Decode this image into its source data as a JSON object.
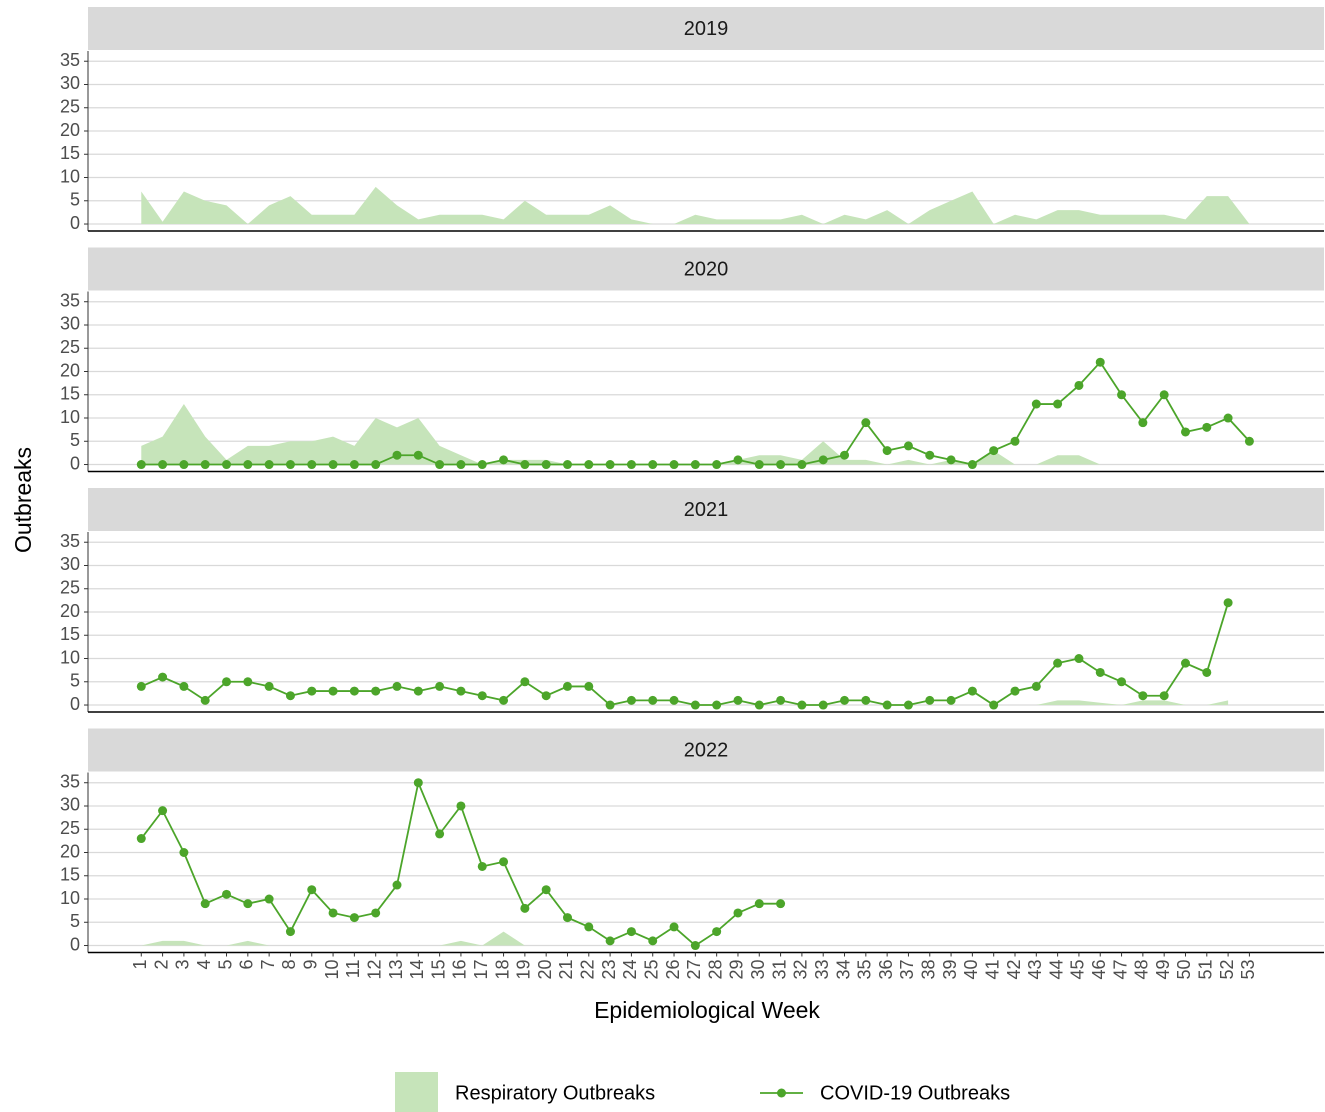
{
  "xlabel": "Epidemiological Week",
  "ylabel": "Outbreaks",
  "x": [
    1,
    2,
    3,
    4,
    5,
    6,
    7,
    8,
    9,
    10,
    11,
    12,
    13,
    14,
    15,
    16,
    17,
    18,
    19,
    20,
    21,
    22,
    23,
    24,
    25,
    26,
    27,
    28,
    29,
    30,
    31,
    32,
    33,
    34,
    35,
    36,
    37,
    38,
    39,
    40,
    41,
    42,
    43,
    44,
    45,
    46,
    47,
    48,
    49,
    50,
    51,
    52,
    53
  ],
  "xlim": [
    -1.5,
    56.5
  ],
  "chart_data": [
    {
      "type": "line",
      "title": "2019",
      "ylim": [
        -1.5,
        37.2
      ],
      "yticks": [
        0,
        5,
        10,
        15,
        20,
        25,
        30,
        35
      ],
      "grid": true,
      "series": [
        {
          "name": "Respiratory Outbreaks",
          "kind": "area",
          "color": "#c6e4ba",
          "values": [
            7,
            0.5,
            7,
            5,
            4,
            0,
            4,
            6,
            2,
            2,
            2,
            8,
            4,
            1,
            2,
            2,
            2,
            1,
            5,
            2,
            2,
            2,
            4,
            1,
            0,
            0,
            2,
            1,
            1,
            1,
            1,
            2,
            0,
            2,
            1,
            3,
            0,
            3,
            5,
            7,
            0,
            2,
            1,
            3,
            3,
            2,
            2,
            2,
            2,
            1,
            6,
            6,
            0
          ]
        }
      ]
    },
    {
      "type": "line",
      "title": "2020",
      "ylim": [
        -1.5,
        37.2
      ],
      "yticks": [
        0,
        5,
        10,
        15,
        20,
        25,
        30,
        35
      ],
      "grid": true,
      "series": [
        {
          "name": "Respiratory Outbreaks",
          "kind": "area",
          "color": "#c6e4ba",
          "values": [
            4,
            6,
            13,
            6,
            1,
            4,
            4,
            5,
            5,
            6,
            4,
            10,
            8,
            10,
            4,
            2,
            0,
            1,
            1,
            1,
            0,
            0,
            0,
            0,
            0,
            0,
            0,
            0,
            1,
            2,
            2,
            1,
            5,
            1,
            1,
            0,
            1,
            0,
            1,
            0,
            3,
            0,
            0,
            2,
            2,
            0,
            0,
            0,
            0,
            0,
            0,
            0,
            0
          ]
        },
        {
          "name": "COVID-19 Outbreaks",
          "kind": "line",
          "color": "#4ca52a",
          "values": [
            0,
            0,
            0,
            0,
            0,
            0,
            0,
            0,
            0,
            0,
            0,
            0,
            2,
            2,
            0,
            0,
            0,
            1,
            0,
            0,
            0,
            0,
            0,
            0,
            0,
            0,
            0,
            0,
            1,
            0,
            0,
            0,
            1,
            2,
            9,
            3,
            4,
            2,
            1,
            0,
            3,
            5,
            13,
            13,
            17,
            22,
            15,
            9,
            15,
            7,
            8,
            10,
            5
          ]
        }
      ]
    },
    {
      "type": "line",
      "title": "2021",
      "ylim": [
        -1.5,
        37.2
      ],
      "yticks": [
        0,
        5,
        10,
        15,
        20,
        25,
        30,
        35
      ],
      "grid": true,
      "series": [
        {
          "name": "Respiratory Outbreaks",
          "kind": "area",
          "color": "#c6e4ba",
          "values": [
            0,
            0,
            0,
            0,
            0,
            0,
            0,
            0,
            0,
            0,
            0,
            0,
            0,
            0,
            0,
            0,
            0,
            0,
            0,
            0,
            0,
            0,
            0,
            0,
            0,
            0,
            0,
            0,
            0,
            0,
            0,
            0,
            0,
            0,
            0,
            0,
            0,
            0,
            0,
            0,
            0,
            0,
            0,
            1,
            1,
            0.5,
            0,
            1,
            1,
            0,
            0,
            1,
            null
          ]
        },
        {
          "name": "COVID-19 Outbreaks",
          "kind": "line",
          "color": "#4ca52a",
          "values": [
            4,
            6,
            4,
            1,
            5,
            5,
            4,
            2,
            3,
            3,
            3,
            3,
            4,
            3,
            4,
            3,
            2,
            1,
            5,
            2,
            4,
            4,
            0,
            1,
            1,
            1,
            0,
            0,
            1,
            0,
            1,
            0,
            0,
            1,
            1,
            0,
            0,
            1,
            1,
            3,
            0,
            3,
            4,
            9,
            10,
            7,
            5,
            2,
            2,
            9,
            7,
            22,
            null
          ]
        }
      ]
    },
    {
      "type": "line",
      "title": "2022",
      "ylim": [
        -1.5,
        37.2
      ],
      "yticks": [
        0,
        5,
        10,
        15,
        20,
        25,
        30,
        35
      ],
      "grid": true,
      "series": [
        {
          "name": "Respiratory Outbreaks",
          "kind": "area",
          "color": "#c6e4ba",
          "values": [
            0,
            1,
            1,
            0,
            0,
            1,
            0,
            0,
            0,
            0,
            0,
            0,
            0,
            0,
            0,
            1,
            0,
            3,
            0,
            0,
            0,
            0,
            0,
            0,
            0,
            0,
            0,
            0,
            0,
            0,
            0,
            null,
            null,
            null,
            null,
            null,
            null,
            null,
            null,
            null,
            null,
            null,
            null,
            null,
            null,
            null,
            null,
            null,
            null,
            null,
            null,
            null,
            null
          ]
        },
        {
          "name": "COVID-19 Outbreaks",
          "kind": "line",
          "color": "#4ca52a",
          "values": [
            23,
            29,
            20,
            9,
            11,
            9,
            10,
            3,
            12,
            7,
            6,
            7,
            13,
            35,
            24,
            30,
            17,
            18,
            8,
            12,
            6,
            4,
            1,
            3,
            1,
            4,
            0,
            3,
            7,
            9,
            9,
            null,
            null,
            null,
            null,
            null,
            null,
            null,
            null,
            null,
            null,
            null,
            null,
            null,
            null,
            null,
            null,
            null,
            null,
            null,
            null,
            null,
            null
          ]
        }
      ]
    }
  ]
}
